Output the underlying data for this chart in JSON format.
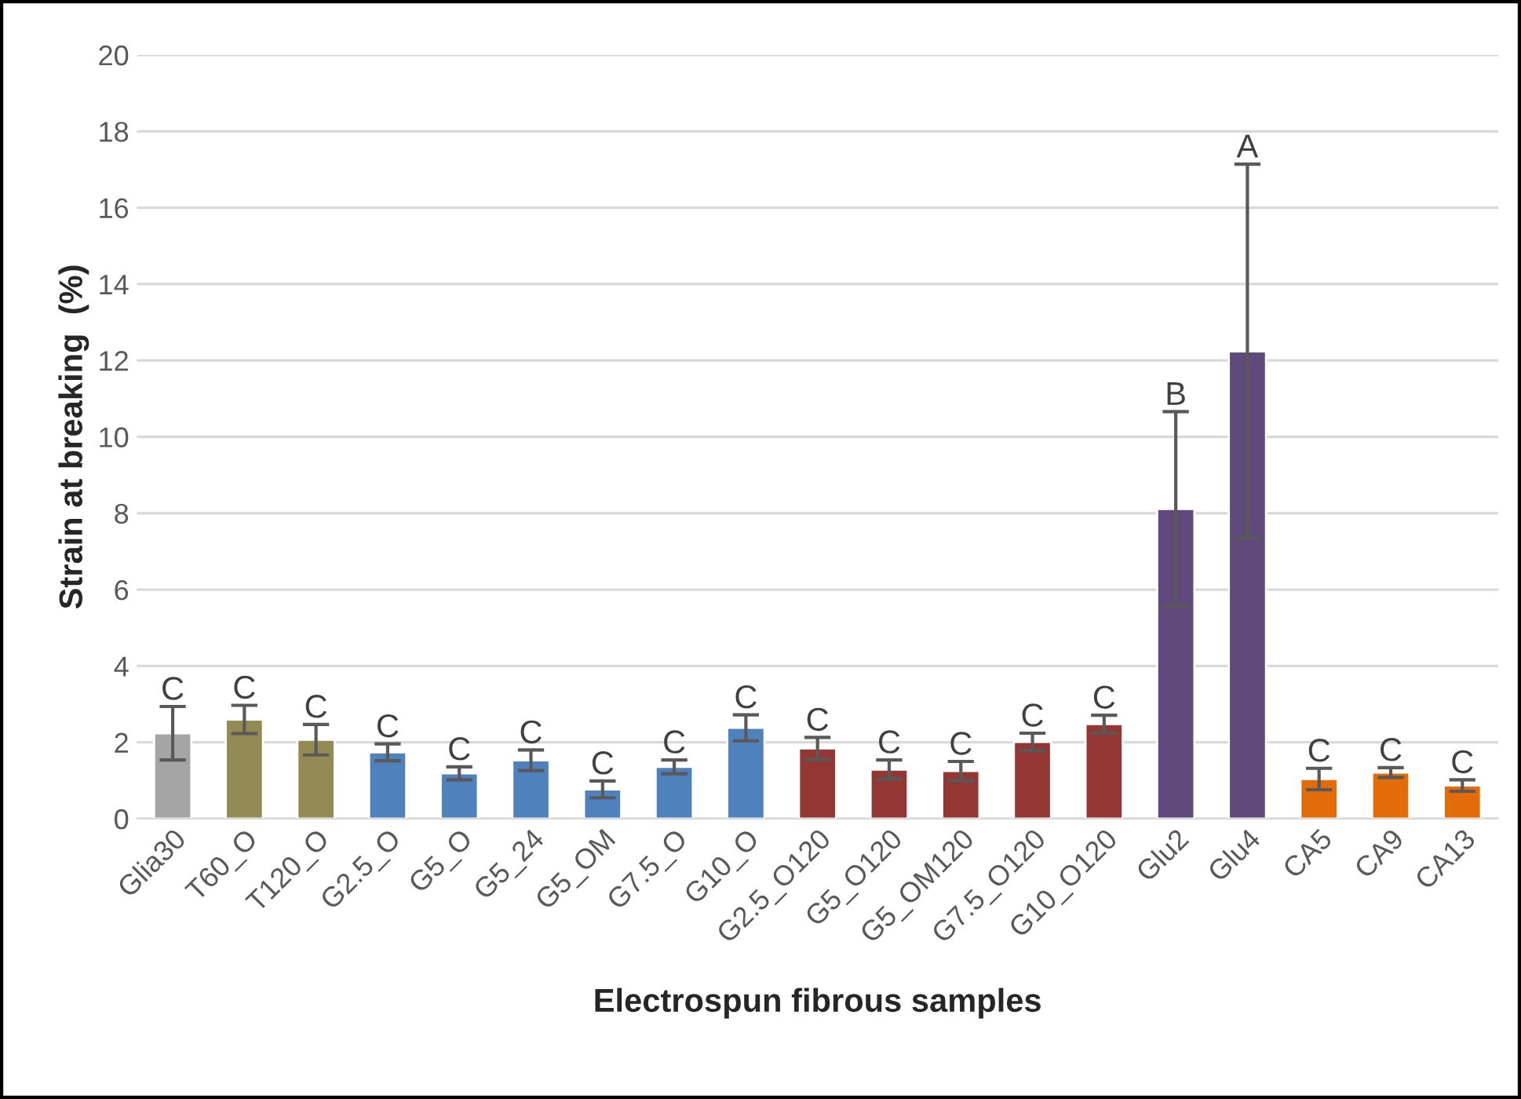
{
  "chart_data": {
    "type": "bar",
    "xlabel": "Electrospun fibrous samples",
    "ylabel": "Strain at breaking  (%)",
    "categories": [
      "Glia30",
      "T60_O",
      "T120_O",
      "G2.5_O",
      "G5_O",
      "G5_24",
      "G5_OM",
      "G7.5_O",
      "G10_O",
      "G2.5_O120",
      "G5_O120",
      "G5_OM120",
      "G7.5_O120",
      "G10_O120",
      "Glu2",
      "Glu4",
      "CA5",
      "CA9",
      "CA13"
    ],
    "values": [
      2.24,
      2.6,
      2.07,
      1.74,
      1.19,
      1.53,
      0.77,
      1.36,
      2.38,
      1.84,
      1.29,
      1.25,
      2.01,
      2.48,
      8.11,
      12.24,
      1.04,
      1.21,
      0.87
    ],
    "errors": [
      0.7,
      0.37,
      0.4,
      0.22,
      0.17,
      0.27,
      0.22,
      0.18,
      0.34,
      0.29,
      0.25,
      0.25,
      0.23,
      0.23,
      2.55,
      4.9,
      0.28,
      0.13,
      0.15
    ],
    "colors": [
      "#a5a5a5",
      "#948a54",
      "#948a54",
      "#4f81bd",
      "#4f81bd",
      "#4f81bd",
      "#4f81bd",
      "#4f81bd",
      "#4f81bd",
      "#943634",
      "#943634",
      "#943634",
      "#943634",
      "#943634",
      "#604a7b",
      "#604a7b",
      "#e36c09",
      "#e36c09",
      "#e36c09"
    ],
    "ylim": [
      0,
      20
    ],
    "yticks": [
      0,
      2,
      4,
      6,
      8,
      10,
      12,
      14,
      16,
      18,
      20
    ],
    "grid": "y",
    "annotations": [
      {
        "text": "C",
        "x": "Glia30",
        "y": 2.94
      },
      {
        "text": "C",
        "x": "T60_O",
        "y": 2.97
      },
      {
        "text": "C",
        "x": "T120_O",
        "y": 2.47
      },
      {
        "text": "C",
        "x": "G2.5_O",
        "y": 1.96
      },
      {
        "text": "C",
        "x": "G5_O",
        "y": 1.36
      },
      {
        "text": "C",
        "x": "G5_24",
        "y": 1.8
      },
      {
        "text": "C",
        "x": "G5_OM",
        "y": 0.99
      },
      {
        "text": "C",
        "x": "G7.5_O",
        "y": 1.54
      },
      {
        "text": "C",
        "x": "G10_O",
        "y": 2.72
      },
      {
        "text": "C",
        "x": "G2.5_O120",
        "y": 2.13
      },
      {
        "text": "C",
        "x": "G5_O120",
        "y": 1.54
      },
      {
        "text": "C",
        "x": "G5_OM120",
        "y": 1.5
      },
      {
        "text": "C",
        "x": "G7.5_O120",
        "y": 2.24
      },
      {
        "text": "C",
        "x": "G10_O120",
        "y": 2.71
      },
      {
        "text": "B",
        "x": "Glu2",
        "y": 10.66
      },
      {
        "text": "A",
        "x": "Glu4",
        "y": 17.14
      },
      {
        "text": "C",
        "x": "CA5",
        "y": 1.32
      },
      {
        "text": "C",
        "x": "CA9",
        "y": 1.34
      },
      {
        "text": "C",
        "x": "CA13",
        "y": 1.02
      }
    ]
  }
}
